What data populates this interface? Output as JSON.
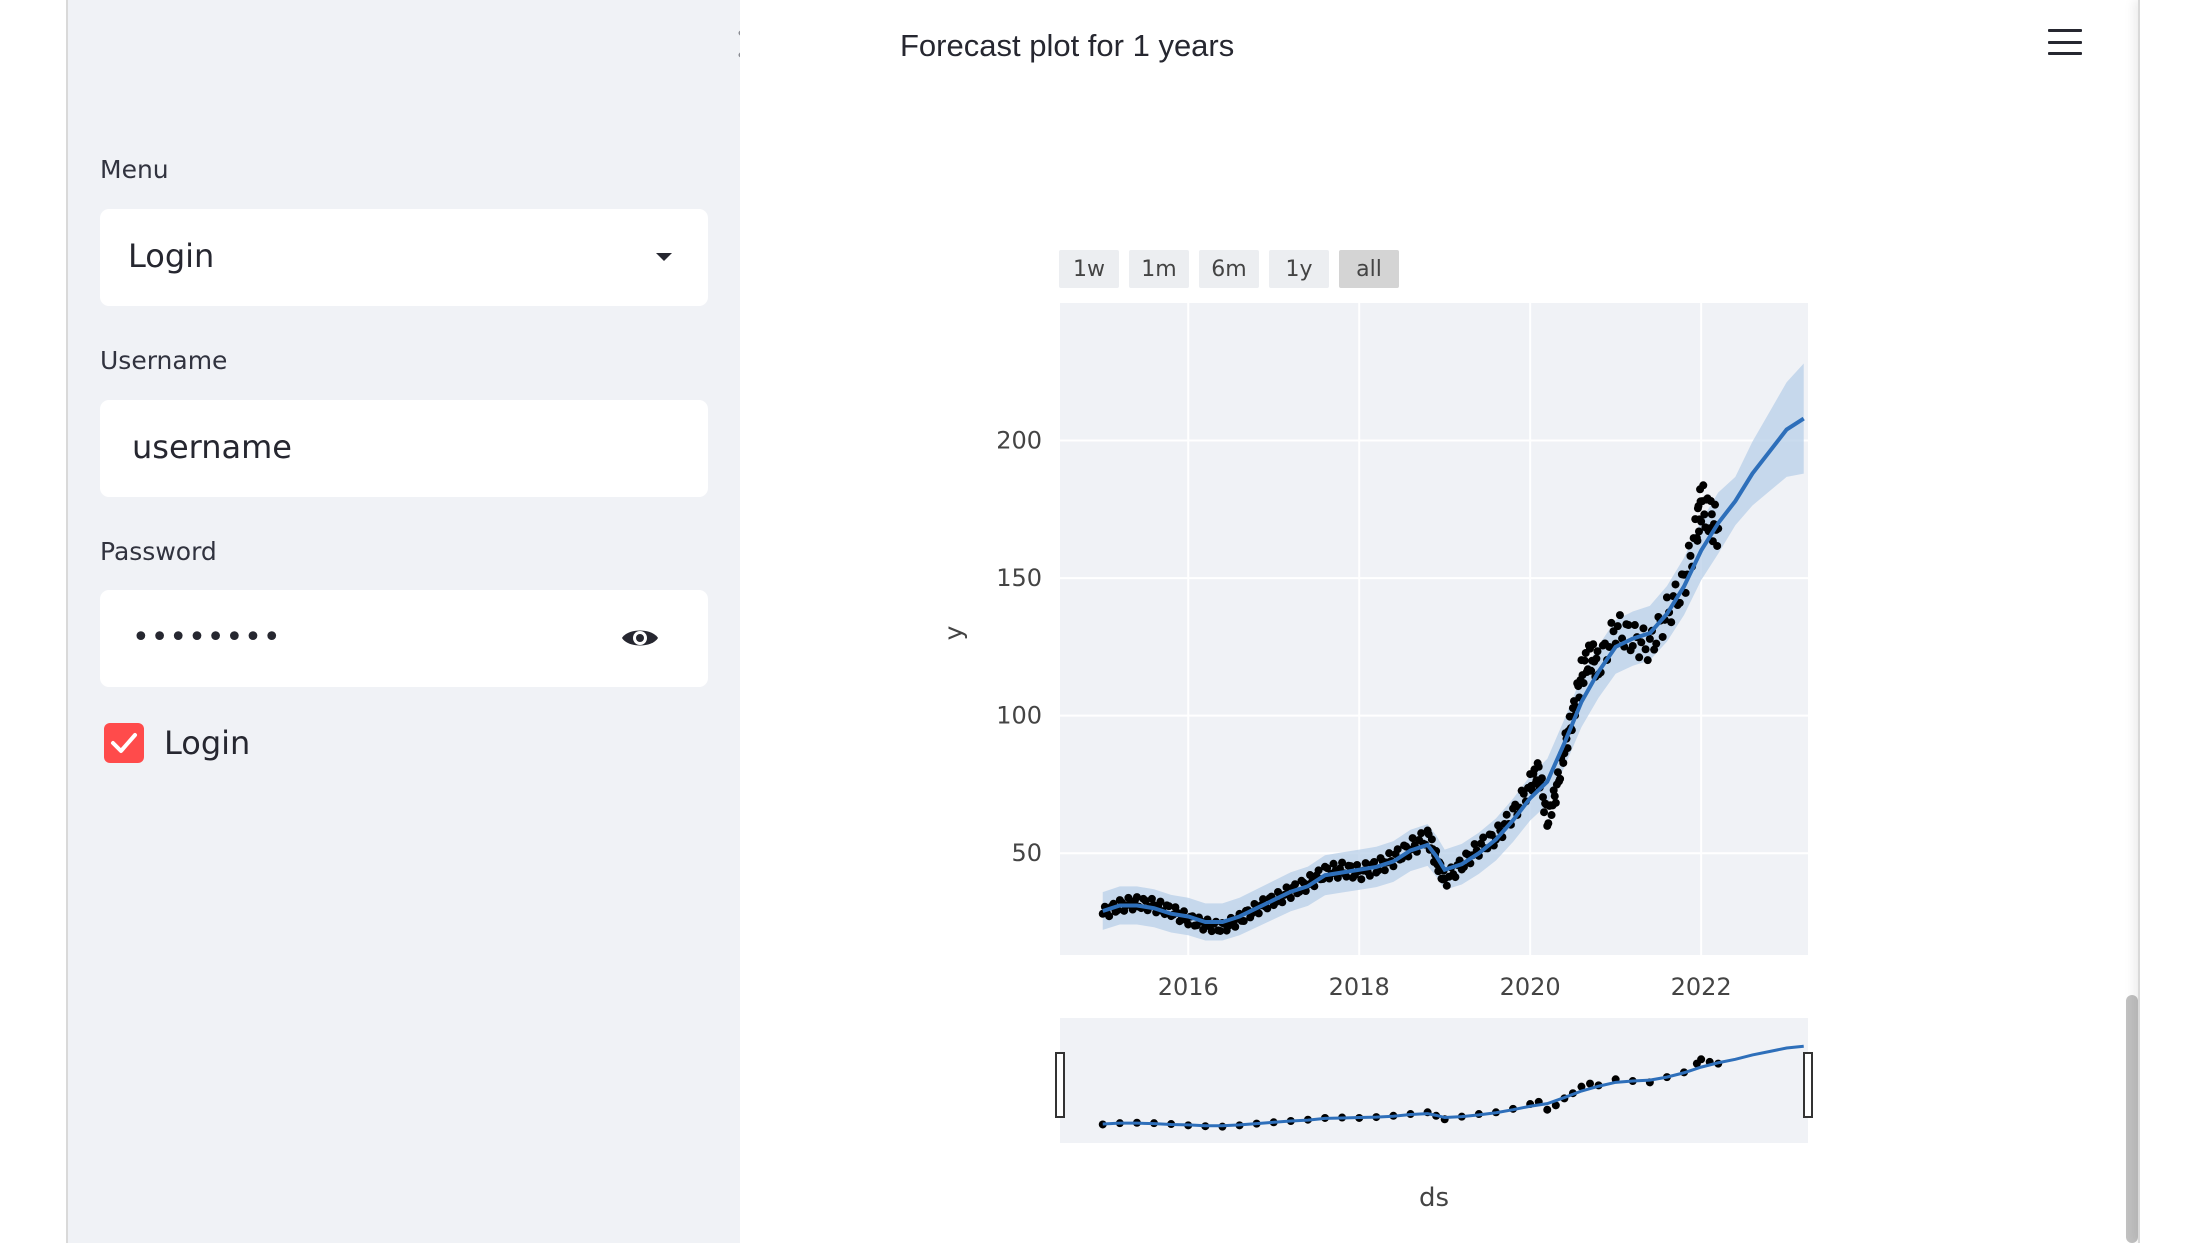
{
  "sidebar": {
    "menu_label": "Menu",
    "menu_value": "Login",
    "username_label": "Username",
    "username_value": "username",
    "password_label": "Password",
    "password_value": "••••••••",
    "login_checkbox_label": "Login",
    "login_checked": true
  },
  "main": {
    "chart_title": "Forecast plot for 1 years",
    "range_buttons": [
      "1w",
      "1m",
      "6m",
      "1y",
      "all"
    ],
    "active_range": "all"
  },
  "colors": {
    "accent": "#ff4b4b",
    "sidebar_bg": "#f0f2f6",
    "forecast_line": "#2e6fba",
    "uncertainty_band": "#b8cfe8",
    "actual_points": "#000000"
  },
  "chart_data": {
    "type": "line",
    "title": "Forecast plot for 1 years",
    "xlabel": "ds",
    "ylabel": "y",
    "x_ticks": [
      "2016",
      "2018",
      "2020",
      "2022"
    ],
    "y_ticks": [
      50,
      100,
      150,
      200
    ],
    "xlim": [
      2014.5,
      2023.25
    ],
    "ylim": [
      13,
      250
    ],
    "grid": true,
    "has_range_slider": true,
    "series": [
      {
        "kind": "actual",
        "x": [
          2015.0,
          2015.2,
          2015.4,
          2015.6,
          2015.8,
          2016.0,
          2016.2,
          2016.4,
          2016.6,
          2016.8,
          2017.0,
          2017.2,
          2017.4,
          2017.6,
          2017.8,
          2018.0,
          2018.2,
          2018.4,
          2018.6,
          2018.8,
          2018.9,
          2019.0,
          2019.2,
          2019.4,
          2019.6,
          2019.8,
          2020.0,
          2020.1,
          2020.2,
          2020.3,
          2020.4,
          2020.5,
          2020.6,
          2020.7,
          2020.8,
          2021.0,
          2021.2,
          2021.4,
          2021.6,
          2021.8,
          2021.95,
          2022.0,
          2022.1,
          2022.2
        ],
        "y": [
          28,
          31,
          32,
          31,
          29,
          26,
          24,
          23,
          26,
          30,
          33,
          36,
          39,
          43,
          44,
          43,
          45,
          48,
          52,
          56,
          48,
          40,
          46,
          52,
          56,
          64,
          75,
          80,
          62,
          72,
          88,
          100,
          115,
          122,
          118,
          132,
          128,
          125,
          137,
          148,
          168,
          178,
          172,
          168
        ]
      },
      {
        "kind": "forecast",
        "x": [
          2015.0,
          2015.2,
          2015.4,
          2015.6,
          2015.8,
          2016.0,
          2016.2,
          2016.4,
          2016.6,
          2016.8,
          2017.0,
          2017.2,
          2017.4,
          2017.6,
          2017.8,
          2018.0,
          2018.2,
          2018.4,
          2018.6,
          2018.8,
          2018.9,
          2019.0,
          2019.2,
          2019.4,
          2019.6,
          2019.8,
          2020.0,
          2020.2,
          2020.4,
          2020.6,
          2020.8,
          2021.0,
          2021.2,
          2021.4,
          2021.6,
          2021.8,
          2022.0,
          2022.2,
          2022.4,
          2022.6,
          2022.8,
          2023.0,
          2023.2
        ],
        "y": [
          29,
          31,
          31,
          30,
          28,
          27,
          25,
          25,
          27,
          30,
          33,
          36,
          38,
          42,
          43,
          44,
          45,
          47,
          51,
          53,
          49,
          44,
          46,
          50,
          55,
          62,
          70,
          76,
          90,
          105,
          116,
          125,
          128,
          130,
          137,
          147,
          160,
          170,
          178,
          188,
          196,
          204,
          208
        ]
      }
    ]
  }
}
